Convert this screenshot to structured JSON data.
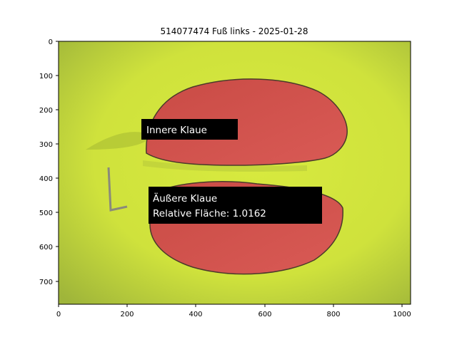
{
  "figure": {
    "title": "514077474 Fuß links - 2025-01-28",
    "x_ticks": [
      "0",
      "200",
      "400",
      "600",
      "800",
      "1000"
    ],
    "y_ticks": [
      "0",
      "100",
      "200",
      "300",
      "400",
      "500",
      "600",
      "700"
    ],
    "image_extent": {
      "width": 1024,
      "height": 768
    }
  },
  "annotations": {
    "inner": {
      "label": "Innere Klaue"
    },
    "outer": {
      "line1": "Äußere Klaue",
      "line2": "Relative Fläche: 1.0162"
    }
  },
  "colors": {
    "background": "#cfe23a",
    "claw_overlay": "#d94b4b",
    "label_box": "#000000"
  }
}
